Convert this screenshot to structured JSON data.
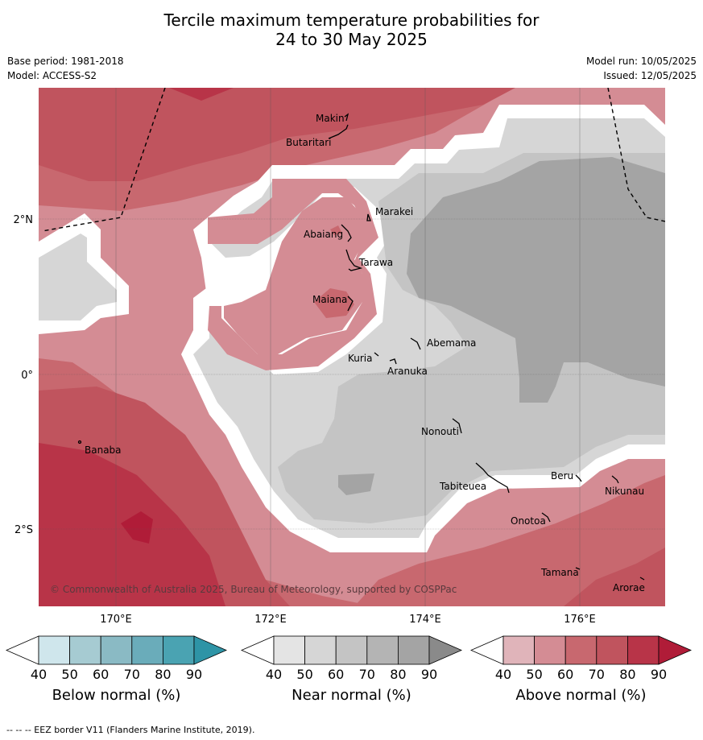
{
  "title": {
    "line1": "Tercile maximum temperature probabilities for",
    "line2": "24 to 30 May 2025"
  },
  "meta": {
    "base_period": "Base period: 1981-2018",
    "model": "Model: ACCESS-S2",
    "model_run": "Model run: 10/05/2025",
    "issued": "Issued: 12/05/2025"
  },
  "axes": {
    "lon_labels": [
      "170°E",
      "172°E",
      "174°E",
      "176°E"
    ],
    "lat_labels": [
      "2°N",
      "0°",
      "2°S"
    ]
  },
  "places": [
    "Makin",
    "Butaritari",
    "Marakei",
    "Abaiang",
    "Tarawa",
    "Maiana",
    "Abemama",
    "Kuria",
    "Aranuka",
    "Nonouti",
    "Banaba",
    "Tabiteuea",
    "Beru",
    "Nikunau",
    "Onotoa",
    "Tamana",
    "Arorae"
  ],
  "copyright": "© Commonwealth of Australia 2025, Bureau of Meteorology, supported by COSPPac",
  "colorbars": [
    {
      "title": "Below normal (%)",
      "ticks": [
        "40",
        "50",
        "60",
        "70",
        "80",
        "90"
      ],
      "colors": [
        "#ffffff",
        "#cfe6ec",
        "#a6cbd2",
        "#8abac4",
        "#6aacba",
        "#4aa3b2",
        "#2e94a6"
      ]
    },
    {
      "title": "Near normal (%)",
      "ticks": [
        "40",
        "50",
        "60",
        "70",
        "80",
        "90"
      ],
      "colors": [
        "#ffffff",
        "#e4e4e4",
        "#d6d6d6",
        "#c4c4c4",
        "#b4b4b4",
        "#a4a4a4",
        "#8a8a8a"
      ]
    },
    {
      "title": "Above normal (%)",
      "ticks": [
        "40",
        "50",
        "60",
        "70",
        "80",
        "90"
      ],
      "colors": [
        "#ffffff",
        "#e0b4ba",
        "#d48c94",
        "#c8686f",
        "#c0545e",
        "#b83448",
        "#b01c38"
      ]
    }
  ],
  "footer": "--  --  -- EEZ border V11 (Flanders Marine Institute, 2019)."
}
